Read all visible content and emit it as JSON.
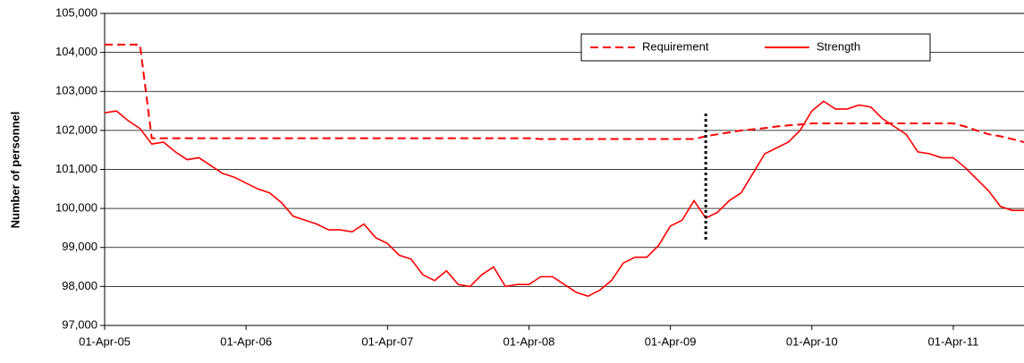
{
  "chart_data": {
    "type": "line",
    "y_label": "Number of personnel",
    "x": [
      "01-Apr-05",
      "01-May-05",
      "01-Jun-05",
      "01-Jul-05",
      "01-Aug-05",
      "01-Sep-05",
      "01-Oct-05",
      "01-Nov-05",
      "01-Dec-05",
      "01-Jan-06",
      "01-Feb-06",
      "01-Mar-06",
      "01-Apr-06",
      "01-May-06",
      "01-Jun-06",
      "01-Jul-06",
      "01-Aug-06",
      "01-Sep-06",
      "01-Oct-06",
      "01-Nov-06",
      "01-Dec-06",
      "01-Jan-07",
      "01-Feb-07",
      "01-Mar-07",
      "01-Apr-07",
      "01-May-07",
      "01-Jun-07",
      "01-Jul-07",
      "01-Aug-07",
      "01-Sep-07",
      "01-Oct-07",
      "01-Nov-07",
      "01-Dec-07",
      "01-Jan-08",
      "01-Feb-08",
      "01-Mar-08",
      "01-Apr-08",
      "01-May-08",
      "01-Jun-08",
      "01-Jul-08",
      "01-Aug-08",
      "01-Sep-08",
      "01-Oct-08",
      "01-Nov-08",
      "01-Dec-08",
      "01-Jan-09",
      "01-Feb-09",
      "01-Mar-09",
      "01-Apr-09",
      "01-May-09",
      "01-Jun-09",
      "01-Jul-09",
      "01-Aug-09",
      "01-Sep-09",
      "01-Oct-09",
      "01-Nov-09",
      "01-Dec-09",
      "01-Jan-10",
      "01-Feb-10",
      "01-Mar-10",
      "01-Apr-10",
      "01-May-10",
      "01-Jun-10",
      "01-Jul-10",
      "01-Aug-10",
      "01-Sep-10",
      "01-Oct-10",
      "01-Nov-10",
      "01-Dec-10",
      "01-Jan-11",
      "01-Feb-11",
      "01-Mar-11",
      "01-Apr-11",
      "01-May-11",
      "01-Jun-11",
      "01-Jul-11",
      "01-Aug-11",
      "01-Sep-11",
      "01-Oct-11"
    ],
    "series": [
      {
        "name": "Requirement",
        "color": "#ff0000",
        "dash": true,
        "values": [
          104200,
          104200,
          104200,
          104200,
          101800,
          101800,
          101800,
          101800,
          101800,
          101800,
          101800,
          101800,
          101800,
          101800,
          101800,
          101800,
          101800,
          101800,
          101800,
          101800,
          101800,
          101800,
          101800,
          101800,
          101800,
          101800,
          101800,
          101800,
          101800,
          101800,
          101800,
          101800,
          101800,
          101800,
          101800,
          101800,
          101800,
          101780,
          101780,
          101780,
          101780,
          101780,
          101780,
          101780,
          101780,
          101780,
          101780,
          101780,
          101780,
          101780,
          101780,
          101850,
          101900,
          101950,
          102000,
          102030,
          102060,
          102100,
          102130,
          102150,
          102180,
          102180,
          102180,
          102180,
          102180,
          102180,
          102180,
          102180,
          102180,
          102180,
          102180,
          102180,
          102180,
          102100,
          102000,
          101900,
          101850,
          101780,
          101700
        ]
      },
      {
        "name": "Strength",
        "color": "#ff0000",
        "dash": false,
        "values": [
          102450,
          102500,
          102250,
          102050,
          101650,
          101700,
          101450,
          101250,
          101300,
          101100,
          100900,
          100800,
          100650,
          100500,
          100400,
          100150,
          99800,
          99700,
          99600,
          99450,
          99450,
          99400,
          99600,
          99250,
          99100,
          98800,
          98700,
          98300,
          98150,
          98400,
          98050,
          98000,
          98300,
          98500,
          98000,
          98050,
          98050,
          98250,
          98250,
          98050,
          97850,
          97750,
          97900,
          98150,
          98600,
          98750,
          98750,
          99050,
          99550,
          99700,
          100200,
          99750,
          99900,
          100200,
          100400,
          100900,
          101400,
          101550,
          101700,
          102000,
          102500,
          102750,
          102550,
          102550,
          102650,
          102600,
          102300,
          102100,
          101900,
          101450,
          101400,
          101300,
          101300,
          101050,
          100750,
          100450,
          100050,
          99950,
          99950
        ]
      }
    ],
    "vline": {
      "x": "01-Jul-09",
      "y": [
        99200,
        102450
      ],
      "color": "#000000"
    },
    "xlim": [
      "01-Apr-05",
      "01-Oct-11"
    ],
    "xticks": [
      "01-Apr-05",
      "01-Apr-06",
      "01-Apr-07",
      "01-Apr-08",
      "01-Apr-09",
      "01-Apr-10",
      "01-Apr-11"
    ],
    "ylim": [
      97000,
      105000
    ],
    "yticks": [
      {
        "value": 97000,
        "label": "97,000"
      },
      {
        "value": 98000,
        "label": "98,000"
      },
      {
        "value": 99000,
        "label": "99,000"
      },
      {
        "value": 100000,
        "label": "100,000"
      },
      {
        "value": 101000,
        "label": "101,000"
      },
      {
        "value": 102000,
        "label": "102,000"
      },
      {
        "value": 103000,
        "label": "103,000"
      },
      {
        "value": 104000,
        "label": "104,000"
      },
      {
        "value": 105000,
        "label": "105,000"
      }
    ],
    "grid": true,
    "legend": "upper right"
  }
}
